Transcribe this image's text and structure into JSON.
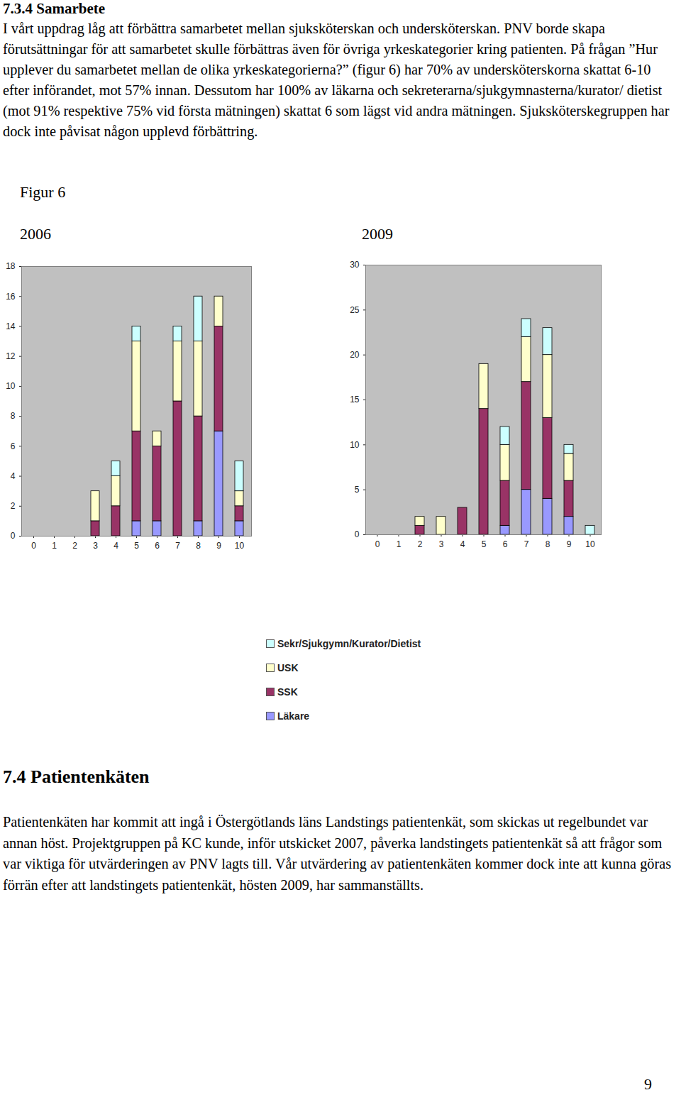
{
  "document": {
    "heading": "7.3.4 Samarbete",
    "paragraph": "I vårt uppdrag låg att förbättra samarbetet mellan sjuksköterskan och undersköterskan. PNV borde skapa förutsättningar för att samarbetet skulle förbättras även för övriga yrkeskategorier kring patienten. På frågan ”Hur upplever du samarbetet mellan de olika yrkeskategorierna?” (figur 6) har 70% av undersköterskorna skattat 6-10 efter införandet, mot 57% innan. Dessutom har 100% av läkarna och sekreterarna/sjukgymnasterna/kurator/ dietist (mot 91% respektive 75% vid första mätningen) skattat 6 som lägst vid andra mätningen. Sjuksköterskegruppen har dock inte påvisat någon upplevd förbättring.",
    "figure_label": "Figur 6",
    "heading2": "7.4 Patientenkäten",
    "paragraph2": "Patientenkäten har kommit att ingå i Östergötlands läns Landstings patientenkät, som skickas ut regelbundet var annan höst. Projektgruppen på KC kunde, inför utskicket 2007, påverka landstingets patientenkät så att frågor som var viktiga för utvärderingen av PNV lagts till. Vår utvärdering av patientenkäten kommer dock inte att kunna göras förrän efter att landstingets patientenkät, hösten 2009, har sammanställts.",
    "page_number": "9"
  },
  "chart_data": [
    {
      "type": "bar",
      "title": "2006",
      "stacked": true,
      "grid": false,
      "legend": "bottom",
      "categories": [
        "0",
        "1",
        "2",
        "3",
        "4",
        "5",
        "6",
        "7",
        "8",
        "9",
        "10"
      ],
      "series": [
        {
          "name": "Läkare",
          "color": "#9999ff",
          "values": [
            0,
            0,
            0,
            0,
            0,
            1,
            1,
            0,
            1,
            7,
            1
          ]
        },
        {
          "name": "SSK",
          "color": "#993366",
          "values": [
            0,
            0,
            0,
            1,
            2,
            6,
            5,
            9,
            7,
            7,
            1
          ]
        },
        {
          "name": "USK",
          "color": "#ffffcc",
          "values": [
            0,
            0,
            0,
            2,
            2,
            6,
            1,
            4,
            5,
            2,
            1
          ]
        },
        {
          "name": "Sekr/Sjukgymn/Kurator/Dietist",
          "color": "#ccffff",
          "values": [
            0,
            0,
            0,
            0,
            1,
            1,
            0,
            1,
            3,
            0,
            2
          ]
        }
      ],
      "ylim": [
        0,
        18
      ],
      "yticks": [
        0,
        2,
        4,
        6,
        8,
        10,
        12,
        14,
        16,
        18
      ]
    },
    {
      "type": "bar",
      "title": "2009",
      "stacked": true,
      "grid": false,
      "legend": "bottom",
      "categories": [
        "0",
        "1",
        "2",
        "3",
        "4",
        "5",
        "6",
        "7",
        "8",
        "9",
        "10"
      ],
      "series": [
        {
          "name": "Läkare",
          "color": "#9999ff",
          "values": [
            0,
            0,
            0,
            0,
            0,
            0,
            1,
            5,
            4,
            2,
            0
          ]
        },
        {
          "name": "SSK",
          "color": "#993366",
          "values": [
            0,
            0,
            1,
            0,
            3,
            14,
            5,
            12,
            9,
            4,
            0
          ]
        },
        {
          "name": "USK",
          "color": "#ffffcc",
          "values": [
            0,
            0,
            1,
            2,
            0,
            5,
            4,
            5,
            7,
            3,
            0
          ]
        },
        {
          "name": "Sekr/Sjukgymn/Kurator/Dietist",
          "color": "#ccffff",
          "values": [
            0,
            0,
            0,
            0,
            0,
            0,
            2,
            2,
            3,
            1,
            1
          ]
        }
      ],
      "ylim": [
        0,
        30
      ],
      "yticks": [
        0,
        5,
        10,
        15,
        20,
        25,
        30
      ]
    }
  ]
}
